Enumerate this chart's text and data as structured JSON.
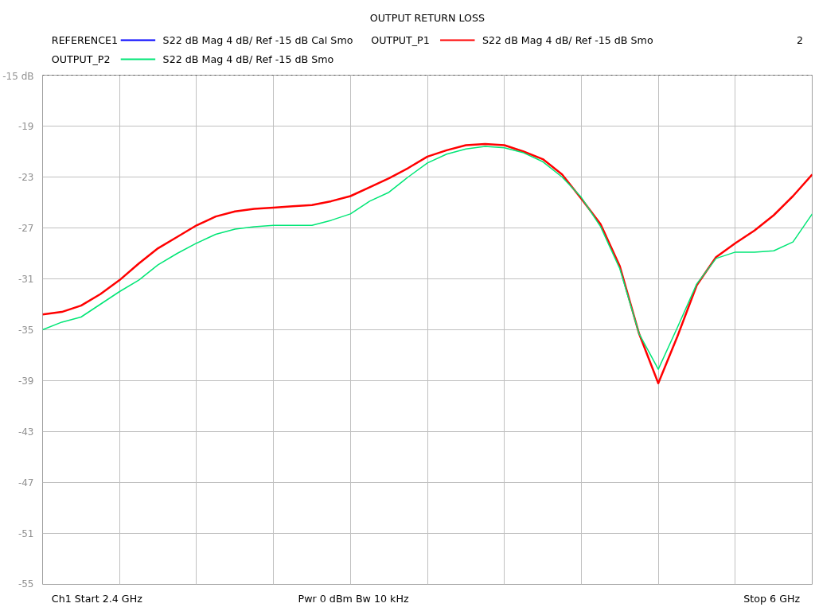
{
  "chart_data": {
    "type": "line",
    "title": "OUTPUT RETURN LOSS",
    "categories": [
      null,
      null,
      null,
      null,
      null,
      null,
      null,
      null,
      null,
      null,
      null,
      null,
      null,
      null,
      null,
      null,
      null,
      null,
      null,
      null,
      null,
      null,
      null,
      null,
      null,
      null,
      null,
      null,
      null,
      null,
      null,
      null,
      null,
      null,
      null,
      null,
      null,
      null,
      null,
      null,
      null
    ],
    "ylim": [
      -55,
      -15
    ],
    "yticks": [
      {
        "value": -15,
        "label": "-15 dB"
      },
      -19,
      -23,
      -27,
      -31,
      -35,
      -39,
      -43,
      -47,
      -51,
      -55
    ],
    "tick_labels": "y",
    "grid": true,
    "legend": "top",
    "line_style": "solid",
    "ref_lines": [
      {
        "axis": "y",
        "value": -15,
        "label": null,
        "color": "#000000",
        "line_style": "dotted"
      }
    ],
    "annotations": [
      "S22  dB Mag  4 dB/ Ref -15 dB  Cal Smo",
      "S22  dB Mag  4 dB/ Ref -15 dB  Smo",
      "S22  dB Mag  4 dB/ Ref -15 dB  Smo",
      "2",
      "Ch1  Start  2.4 GHz",
      "Pwr  0 dBm  Bw  10 kHz",
      "Stop  6 GHz"
    ],
    "series": [
      {
        "name": "REFERENCE1",
        "color": "#0000ff",
        "values": [
          null,
          null,
          null,
          null,
          null,
          null,
          null,
          null,
          null,
          null,
          null,
          null,
          null,
          null,
          null,
          null,
          null,
          null,
          null,
          null,
          null,
          null,
          null,
          null,
          null,
          null,
          null,
          null,
          null,
          null,
          null,
          null,
          null,
          null,
          null,
          null,
          null,
          null,
          null,
          null,
          null
        ]
      },
      {
        "name": "OUTPUT_P1",
        "color": "#ff0000",
        "values": [
          -33.8,
          -33.6,
          -33.1,
          -32.2,
          -31.1,
          -29.8,
          -28.6,
          -27.7,
          -26.8,
          -26.1,
          -25.7,
          -25.5,
          -25.4,
          -25.3,
          -25.2,
          -24.9,
          -24.5,
          -23.8,
          -23.1,
          -22.3,
          -21.4,
          -20.9,
          -20.5,
          -20.4,
          -20.5,
          -21.0,
          -21.6,
          -22.8,
          -24.7,
          -26.7,
          -30.0,
          -35.3,
          -39.2,
          -35.5,
          -31.5,
          -29.3,
          -28.2,
          -27.2,
          -26.0,
          -24.5,
          -22.8
        ]
      },
      {
        "name": "OUTPUT_P2",
        "color": "#00e676",
        "values": [
          -35.0,
          -34.4,
          -34.0,
          -33.0,
          -32.0,
          -31.1,
          -29.9,
          -29.0,
          -28.2,
          -27.5,
          -27.1,
          -26.9,
          -26.8,
          -26.8,
          -26.8,
          -26.4,
          -25.9,
          -24.9,
          -24.2,
          -23.0,
          -21.9,
          -21.2,
          -20.8,
          -20.6,
          -20.7,
          -21.1,
          -21.8,
          -23.0,
          -24.6,
          -26.9,
          -30.2,
          -35.3,
          -38.1,
          -34.8,
          -31.4,
          -29.4,
          -28.9,
          -28.9,
          -28.8,
          -28.1,
          -25.9
        ]
      }
    ]
  }
}
